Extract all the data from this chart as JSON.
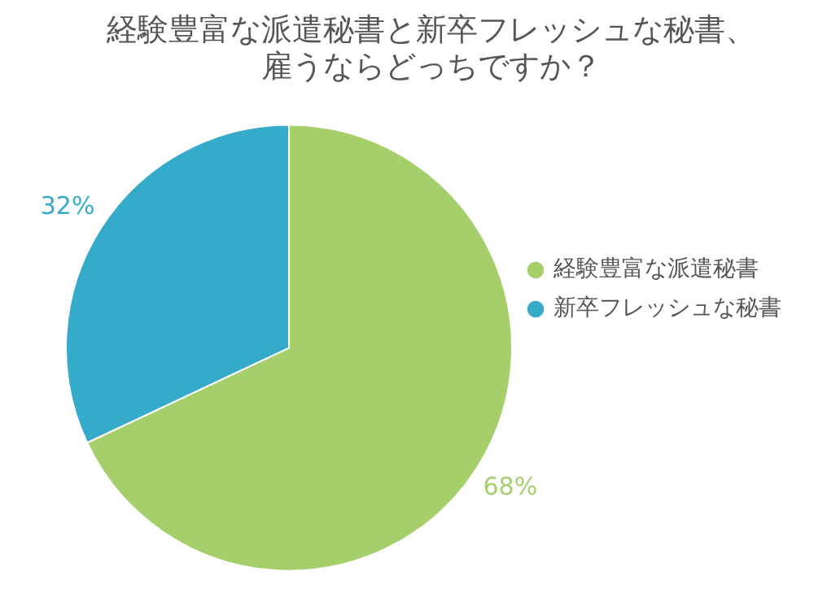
{
  "chart_data": {
    "type": "pie",
    "title": "経験豊富な派遣秘書と新卒フレッシュな秘書、雇うならどっちですか？",
    "categories": [
      "経験豊富な派遣秘書",
      "新卒フレッシュな秘書"
    ],
    "values": [
      68,
      32
    ],
    "colors": [
      "#a5cf6b",
      "#35abc9"
    ],
    "value_labels": [
      "68%",
      "32%"
    ],
    "legend": "right"
  }
}
